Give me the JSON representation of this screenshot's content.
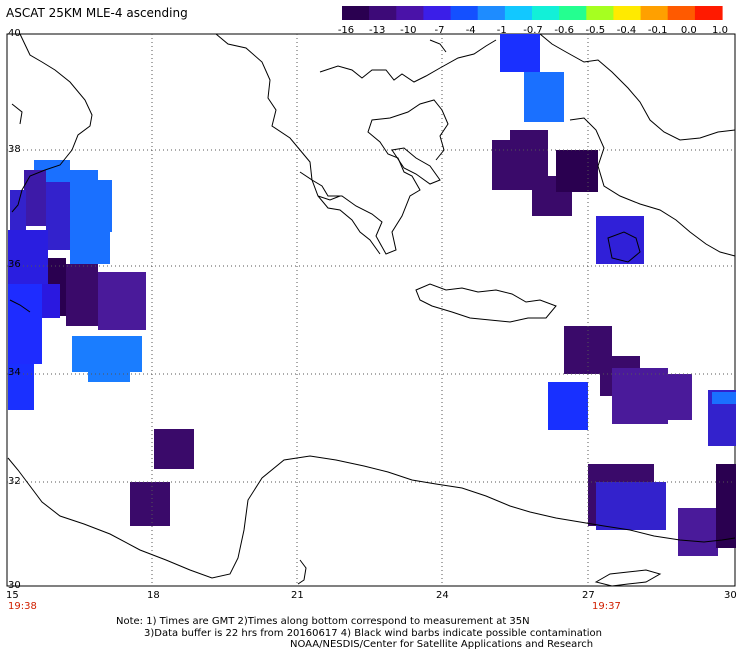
{
  "title": "ASCAT 25KM MLE-4 ascending",
  "colorbar": {
    "labels": [
      "-16",
      "-13",
      "-10",
      "-7",
      "-4",
      "-1",
      "-0.7",
      "-0.6",
      "-0.5",
      "-0.4",
      "-0.1",
      "0.0",
      "1.0"
    ],
    "colors": [
      "#2a0050",
      "#3d0a78",
      "#4a12a8",
      "#3b1ee8",
      "#1450ff",
      "#1e8cff",
      "#12c8ff",
      "#12f0d8",
      "#24ff90",
      "#a6ff20",
      "#ffea00",
      "#ffa000",
      "#ff5a00",
      "#ff1a00"
    ]
  },
  "axes": {
    "lat_labels": [
      "40",
      "38",
      "36",
      "34",
      "32",
      "30"
    ],
    "lon_labels": [
      "15",
      "18",
      "21",
      "24",
      "27",
      "30"
    ]
  },
  "times": {
    "left": "19:38",
    "right": "19:37"
  },
  "notes": [
    "Note: 1) Times are GMT 2)Times along bottom correspond to measurement at 35N",
    "3)Data buffer is 22 hrs from 20160617 4) Black wind barbs indicate possible contamination",
    "NOAA/NESDIS/Center for Satellite Applications and Research"
  ],
  "colors": {
    "darkest": "#2a0050",
    "deep_violet": "#3a0a6a",
    "indigo": "#4a1a9a",
    "royal_blue": "#3020d8",
    "blue": "#1830ff",
    "sky_blue": "#1a7dff",
    "coast": "#000000",
    "grid": "#555555",
    "time_label": "#d02000"
  }
}
